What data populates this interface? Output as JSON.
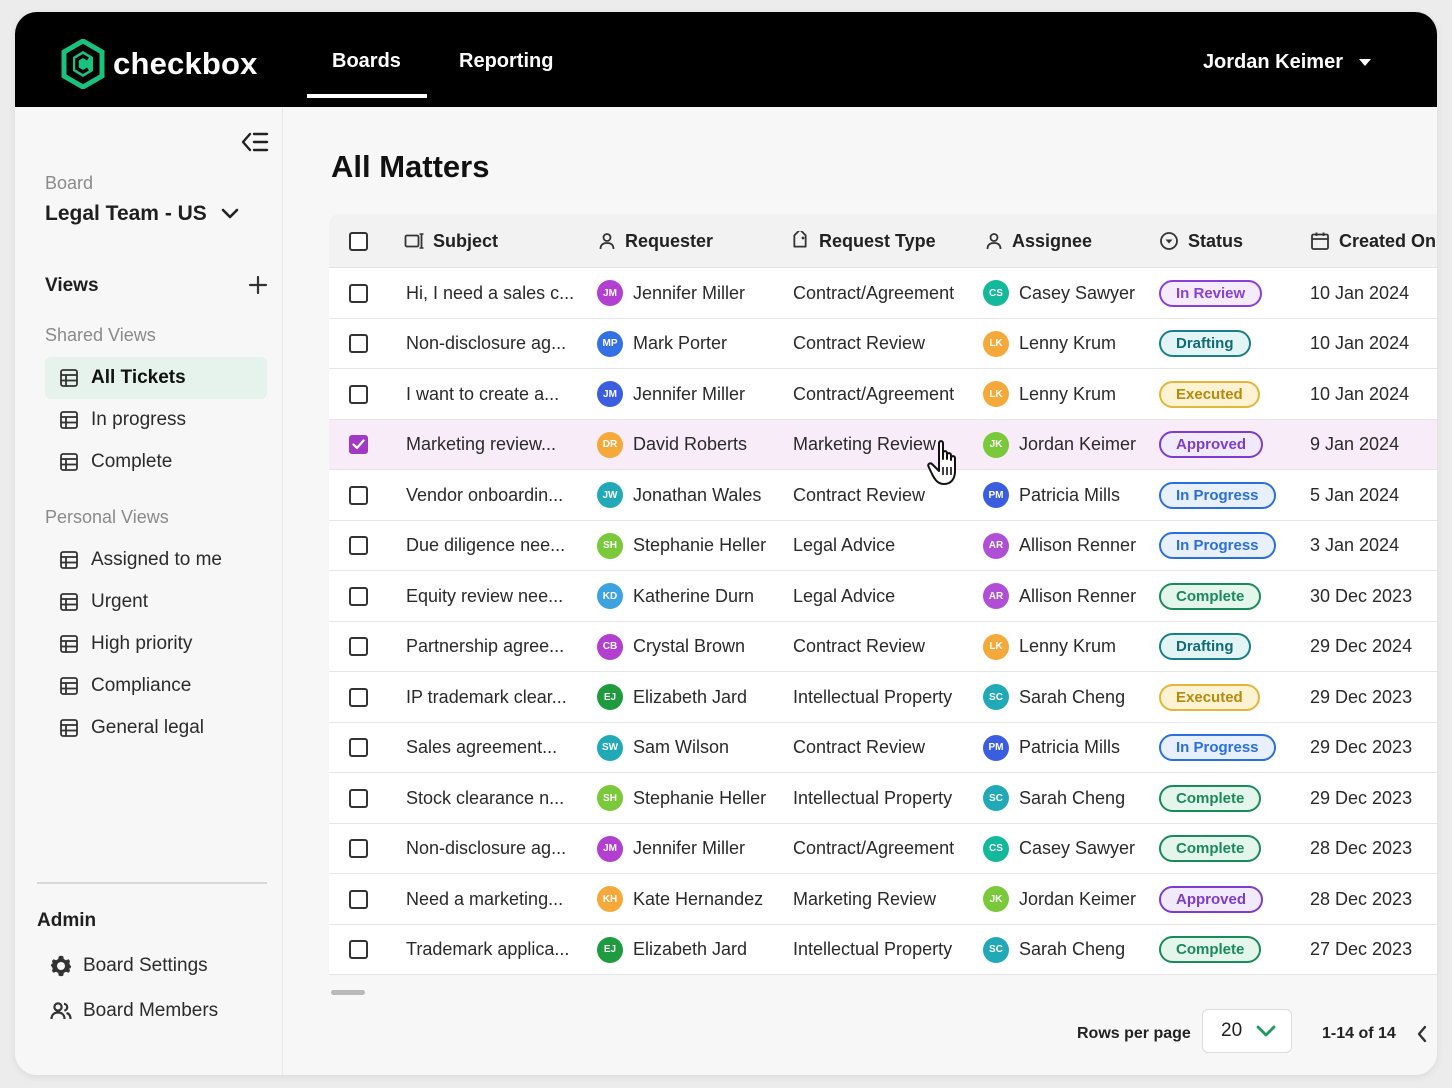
{
  "app": {
    "logo_text": "checkbox",
    "nav_tabs": [
      {
        "label": "Boards",
        "active": true
      },
      {
        "label": "Reporting",
        "active": false
      }
    ],
    "user_name": "Jordan Keimer"
  },
  "sidebar": {
    "board_label": "Board",
    "board_value": "Legal Team - US",
    "views_label": "Views",
    "shared_label": "Shared Views",
    "shared_views": [
      {
        "label": "All Tickets",
        "active": true
      },
      {
        "label": "In progress",
        "active": false
      },
      {
        "label": "Complete",
        "active": false
      }
    ],
    "personal_label": "Personal Views",
    "personal_views": [
      {
        "label": "Assigned to me"
      },
      {
        "label": "Urgent"
      },
      {
        "label": "High priority"
      },
      {
        "label": "Compliance"
      },
      {
        "label": "General legal"
      }
    ],
    "admin_label": "Admin",
    "admin_items": [
      {
        "label": "Board Settings",
        "icon": "gear-icon"
      },
      {
        "label": "Board Members",
        "icon": "users-icon"
      }
    ]
  },
  "main": {
    "title": "All Matters",
    "columns": [
      "Subject",
      "Requester",
      "Request Type",
      "Assignee",
      "Status",
      "Created On"
    ],
    "rows": [
      {
        "checked": false,
        "subject": "Hi, I need a sales c...",
        "requester": "Jennifer Miller",
        "req_initials": "JM",
        "req_color": "#b23fd0",
        "type": "Contract/Agreement",
        "assignee": "Casey Sawyer",
        "asg_initials": "CS",
        "asg_color": "#14b89a",
        "status": "In Review",
        "created": "10 Jan 2024"
      },
      {
        "checked": false,
        "subject": "Non-disclosure ag...",
        "requester": "Mark Porter",
        "req_initials": "MP",
        "req_color": "#3571e6",
        "type": "Contract Review",
        "assignee": "Lenny Krum",
        "asg_initials": "LK",
        "asg_color": "#f5a93b",
        "status": "Drafting",
        "created": "10 Jan 2024"
      },
      {
        "checked": false,
        "subject": "I want to create a...",
        "requester": "Jennifer Miller",
        "req_initials": "JM",
        "req_color": "#3b5ee0",
        "type": "Contract/Agreement",
        "assignee": "Lenny Krum",
        "asg_initials": "LK",
        "asg_color": "#f5a93b",
        "status": "Executed",
        "created": "10 Jan 2024"
      },
      {
        "checked": true,
        "subject": "Marketing review...",
        "requester": "David Roberts",
        "req_initials": "DR",
        "req_color": "#f5a93b",
        "type": "Marketing Review",
        "assignee": "Jordan Keimer",
        "asg_initials": "JK",
        "asg_color": "#79c93a",
        "status": "Approved",
        "created": "9 Jan 2024"
      },
      {
        "checked": false,
        "subject": "Vendor onboardin...",
        "requester": "Jonathan Wales",
        "req_initials": "JW",
        "req_color": "#22a9b8",
        "type": "Contract Review",
        "assignee": "Patricia Mills",
        "asg_initials": "PM",
        "asg_color": "#3b5ee0",
        "status": "In Progress",
        "created": "5 Jan 2024"
      },
      {
        "checked": false,
        "subject": "Due diligence nee...",
        "requester": "Stephanie Heller",
        "req_initials": "SH",
        "req_color": "#79c93a",
        "type": "Legal Advice",
        "assignee": "Allison Renner",
        "asg_initials": "AR",
        "asg_color": "#b04fd6",
        "status": "In Progress",
        "created": "3 Jan 2024"
      },
      {
        "checked": false,
        "subject": "Equity review nee...",
        "requester": "Katherine Durn",
        "req_initials": "KD",
        "req_color": "#3ca2e0",
        "type": "Legal Advice",
        "assignee": "Allison Renner",
        "asg_initials": "AR",
        "asg_color": "#b04fd6",
        "status": "Complete",
        "created": "30 Dec 2023"
      },
      {
        "checked": false,
        "subject": "Partnership agree...",
        "requester": "Crystal Brown",
        "req_initials": "CB",
        "req_color": "#b23fd0",
        "type": "Contract Review",
        "assignee": "Lenny Krum",
        "asg_initials": "LK",
        "asg_color": "#f5a93b",
        "status": "Drafting",
        "created": "29 Dec 2024"
      },
      {
        "checked": false,
        "subject": "IP trademark clear...",
        "requester": "Elizabeth Jard",
        "req_initials": "EJ",
        "req_color": "#1f9b3f",
        "type": "Intellectual Property",
        "assignee": "Sarah Cheng",
        "asg_initials": "SC",
        "asg_color": "#22a9b8",
        "status": "Executed",
        "created": "29 Dec 2023"
      },
      {
        "checked": false,
        "subject": "Sales agreement...",
        "requester": "Sam Wilson",
        "req_initials": "SW",
        "req_color": "#22a9b8",
        "type": "Contract Review",
        "assignee": "Patricia Mills",
        "asg_initials": "PM",
        "asg_color": "#3b5ee0",
        "status": "In Progress",
        "created": "29 Dec 2023"
      },
      {
        "checked": false,
        "subject": "Stock clearance n...",
        "requester": "Stephanie Heller",
        "req_initials": "SH",
        "req_color": "#79c93a",
        "type": "Intellectual Property",
        "assignee": "Sarah Cheng",
        "asg_initials": "SC",
        "asg_color": "#22a9b8",
        "status": "Complete",
        "created": "29 Dec 2023"
      },
      {
        "checked": false,
        "subject": "Non-disclosure ag...",
        "requester": "Jennifer Miller",
        "req_initials": "JM",
        "req_color": "#b23fd0",
        "type": "Contract/Agreement",
        "assignee": "Casey Sawyer",
        "asg_initials": "CS",
        "asg_color": "#14b89a",
        "status": "Complete",
        "created": "28 Dec 2023"
      },
      {
        "checked": false,
        "subject": "Need a marketing...",
        "requester": "Kate Hernandez",
        "req_initials": "KH",
        "req_color": "#f5a93b",
        "type": "Marketing Review",
        "assignee": "Jordan Keimer",
        "asg_initials": "JK",
        "asg_color": "#79c93a",
        "status": "Approved",
        "created": "28 Dec 2023"
      },
      {
        "checked": false,
        "subject": "Trademark applica...",
        "requester": "Elizabeth Jard",
        "req_initials": "EJ",
        "req_color": "#1f9b3f",
        "type": "Intellectual Property",
        "assignee": "Sarah Cheng",
        "asg_initials": "SC",
        "asg_color": "#22a9b8",
        "status": "Complete",
        "created": "27 Dec 2023"
      }
    ],
    "status_styles": {
      "In Review": {
        "fg": "#8a3fd8",
        "bg": "#f4ecfd",
        "border": "#8a3fd8"
      },
      "Drafting": {
        "fg": "#0f6b78",
        "bg": "#e3f4f4",
        "border": "#1c7e86"
      },
      "Executed": {
        "fg": "#b88a0c",
        "bg": "#fdf2d2",
        "border": "#e2b53c"
      },
      "Approved": {
        "fg": "#7c3ccf",
        "bg": "#f1eafd",
        "border": "#7c3ccf"
      },
      "In Progress": {
        "fg": "#2a6fdb",
        "bg": "#e8f0fd",
        "border": "#2a6fdb"
      },
      "Complete": {
        "fg": "#1b8a5a",
        "bg": "#e4f5ec",
        "border": "#1b8a5a"
      }
    },
    "pagination": {
      "rows_per_page_label": "Rows per page",
      "rows_per_page_value": "20",
      "range_text": "1-14 of 14"
    }
  }
}
